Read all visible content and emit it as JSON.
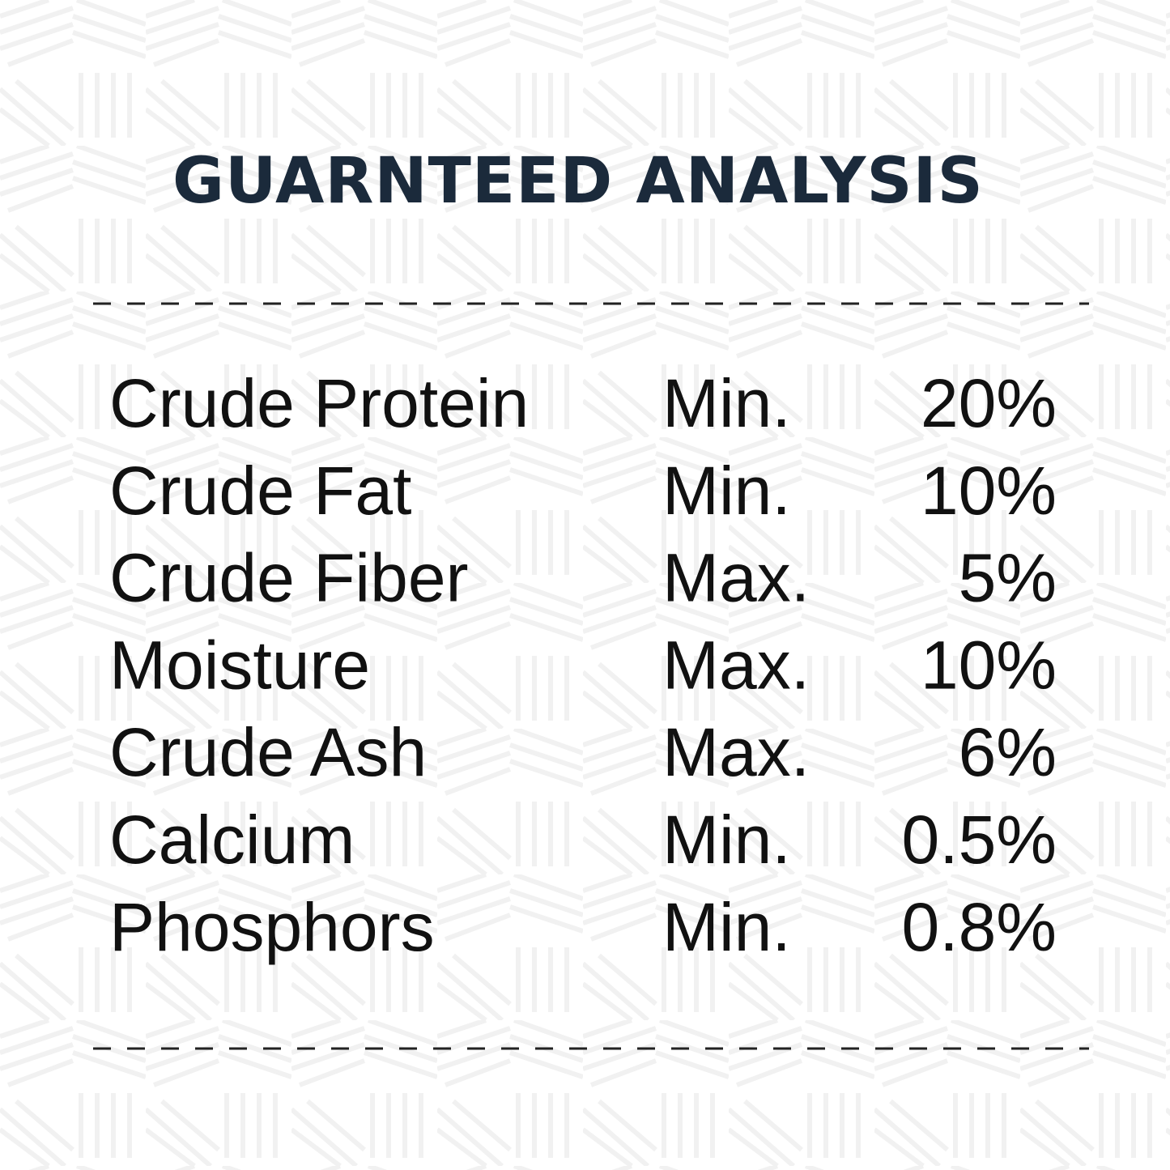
{
  "header": {
    "title": "GUARNTEED ANALYSIS"
  },
  "table": {
    "rows": [
      [
        "Crude Protein",
        "Min.",
        "20%"
      ],
      [
        "Crude Fat",
        "Min.",
        "10%"
      ],
      [
        "Crude Fiber",
        "Max.",
        "5%"
      ],
      [
        "Moisture",
        "Max.",
        "10%"
      ],
      [
        "Crude Ash",
        "Max.",
        "6%"
      ],
      [
        "Calcium",
        "Min.",
        "0.5%"
      ],
      [
        "Phosphors",
        "Min.",
        "0.8%"
      ]
    ]
  }
}
